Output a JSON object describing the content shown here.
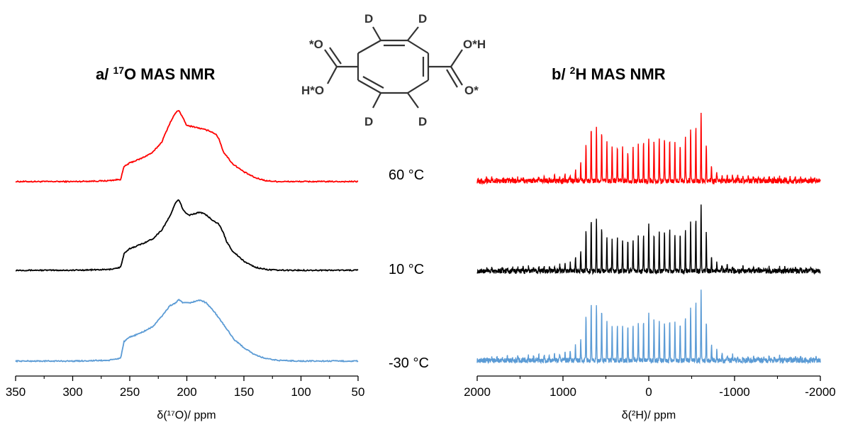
{
  "molecule": {
    "atoms": {
      "d_top_left": "D",
      "d_top_right": "D",
      "d_bottom_left": "D",
      "d_bottom_right": "D",
      "o_star_left": "*O",
      "oh_left": "H*O",
      "oh_right": "O*H",
      "o_star_right": "O*"
    }
  },
  "temperatures": [
    "60 °C",
    "10 °C",
    "-30 °C"
  ],
  "chart_data": [
    {
      "type": "line",
      "panel": "a",
      "title_prefix": "a/ ",
      "title_sup": "17",
      "title_suffix": "O MAS NMR",
      "xlabel": "δ(¹⁷O)/ ppm",
      "xlim": [
        350,
        50
      ],
      "x_reversed": true,
      "xticks": [
        "350",
        "300",
        "250",
        "200",
        "150",
        "100",
        "50"
      ],
      "xtick_values": [
        350,
        300,
        250,
        200,
        150,
        100,
        50
      ],
      "y_axis_shown": false,
      "grid": false,
      "series": [
        {
          "temperature": "60 °C",
          "color": "#ff0000",
          "x": [
            350,
            300,
            270,
            258,
            255,
            250,
            240,
            230,
            222,
            215,
            210,
            207,
            203,
            200,
            195,
            190,
            185,
            180,
            175,
            172,
            168,
            160,
            150,
            140,
            130,
            120,
            100,
            80,
            50
          ],
          "y": [
            0.02,
            0.02,
            0.03,
            0.05,
            0.22,
            0.27,
            0.33,
            0.41,
            0.55,
            0.8,
            0.94,
            0.98,
            0.86,
            0.77,
            0.76,
            0.74,
            0.72,
            0.7,
            0.66,
            0.6,
            0.42,
            0.26,
            0.15,
            0.07,
            0.03,
            0.02,
            0.02,
            0.02,
            0.02
          ]
        },
        {
          "temperature": "10 °C",
          "color": "#000000",
          "x": [
            350,
            300,
            268,
            258,
            255,
            250,
            240,
            230,
            222,
            215,
            210,
            207,
            203,
            198,
            193,
            188,
            183,
            178,
            172,
            168,
            165,
            160,
            150,
            140,
            130,
            120,
            100,
            80,
            50
          ],
          "y": [
            0.02,
            0.02,
            0.03,
            0.06,
            0.24,
            0.31,
            0.37,
            0.44,
            0.56,
            0.74,
            0.92,
            0.97,
            0.82,
            0.76,
            0.78,
            0.8,
            0.76,
            0.7,
            0.64,
            0.52,
            0.4,
            0.28,
            0.14,
            0.06,
            0.03,
            0.02,
            0.02,
            0.02,
            0.02
          ]
        },
        {
          "temperature": "-30 °C",
          "color": "#5b9bd5",
          "x": [
            350,
            300,
            268,
            258,
            255,
            250,
            240,
            230,
            222,
            215,
            210,
            207,
            203,
            198,
            193,
            188,
            183,
            178,
            172,
            165,
            158,
            150,
            140,
            130,
            120,
            100,
            80,
            50
          ],
          "y": [
            0.02,
            0.02,
            0.03,
            0.06,
            0.28,
            0.34,
            0.4,
            0.48,
            0.62,
            0.76,
            0.8,
            0.84,
            0.8,
            0.8,
            0.82,
            0.84,
            0.8,
            0.72,
            0.6,
            0.45,
            0.3,
            0.2,
            0.1,
            0.05,
            0.03,
            0.02,
            0.02,
            0.02
          ]
        }
      ]
    },
    {
      "type": "line",
      "panel": "b",
      "title_prefix": "b/ ",
      "title_sup": "2",
      "title_suffix": "H MAS NMR",
      "xlabel": "δ(²H)/ ppm",
      "xlim": [
        2000,
        -2000
      ],
      "x_reversed": true,
      "xticks": [
        "2000",
        "1000",
        "0",
        "-1000",
        "-2000"
      ],
      "xtick_values": [
        2000,
        1000,
        0,
        -1000,
        -2000
      ],
      "y_axis_shown": false,
      "grid": false,
      "spinning_sideband_spacing_ppm": 61,
      "series": [
        {
          "temperature": "60 °C",
          "color": "#ff0000",
          "envelope_x": [
            2000,
            1500,
            1100,
            900,
            800,
            720,
            650,
            550,
            450,
            350,
            250,
            150,
            50,
            0,
            -50,
            -150,
            -250,
            -350,
            -450,
            -550,
            -620,
            -650,
            -700,
            -760,
            -850,
            -1100,
            -1500,
            -2000
          ],
          "envelope_y": [
            0.03,
            0.04,
            0.06,
            0.1,
            0.22,
            0.6,
            0.82,
            0.68,
            0.45,
            0.5,
            0.42,
            0.48,
            0.55,
            0.62,
            0.56,
            0.6,
            0.58,
            0.5,
            0.65,
            0.78,
            1.0,
            0.7,
            0.28,
            0.14,
            0.08,
            0.05,
            0.04,
            0.03
          ]
        },
        {
          "temperature": "10 °C",
          "color": "#000000",
          "envelope_x": [
            2000,
            1500,
            1100,
            900,
            800,
            720,
            650,
            550,
            450,
            350,
            250,
            150,
            50,
            0,
            -50,
            -150,
            -250,
            -350,
            -450,
            -550,
            -620,
            -650,
            -700,
            -760,
            -850,
            -1100,
            -1500,
            -2000
          ],
          "envelope_y": [
            0.03,
            0.04,
            0.07,
            0.12,
            0.25,
            0.62,
            0.78,
            0.62,
            0.42,
            0.48,
            0.44,
            0.48,
            0.52,
            0.7,
            0.52,
            0.55,
            0.58,
            0.48,
            0.62,
            0.76,
            1.0,
            0.72,
            0.28,
            0.14,
            0.08,
            0.05,
            0.04,
            0.03
          ]
        },
        {
          "temperature": "-30 °C",
          "color": "#5b9bd5",
          "envelope_x": [
            2000,
            1500,
            1100,
            900,
            800,
            720,
            650,
            550,
            450,
            350,
            250,
            150,
            50,
            0,
            -50,
            -150,
            -250,
            -350,
            -450,
            -550,
            -620,
            -650,
            -700,
            -760,
            -850,
            -1100,
            -1500,
            -2000
          ],
          "envelope_y": [
            0.03,
            0.05,
            0.08,
            0.14,
            0.28,
            0.72,
            0.86,
            0.72,
            0.45,
            0.52,
            0.48,
            0.52,
            0.56,
            0.64,
            0.58,
            0.52,
            0.56,
            0.5,
            0.66,
            0.82,
            1.0,
            0.7,
            0.3,
            0.16,
            0.1,
            0.06,
            0.05,
            0.03
          ]
        }
      ]
    }
  ]
}
